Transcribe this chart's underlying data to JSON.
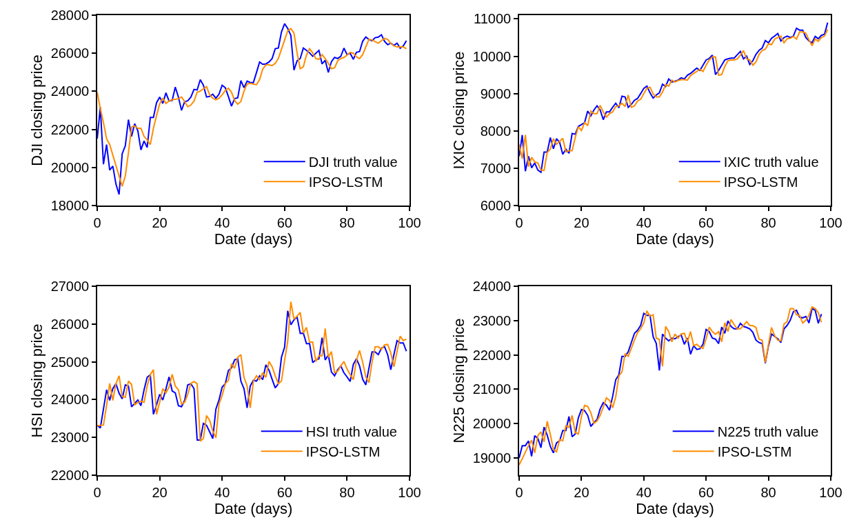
{
  "chart_data": [
    {
      "type": "line",
      "xlabel": "Date (days)",
      "ylabel": "DJI closing price",
      "xlim": [
        0,
        100
      ],
      "xticks": [
        0,
        20,
        40,
        60,
        80,
        100
      ],
      "ylim": [
        18000,
        28000
      ],
      "yticks": [
        18000,
        20000,
        22000,
        24000,
        26000,
        28000
      ],
      "legend": "bottom right",
      "x": [
        0,
        1,
        2,
        3,
        4,
        5,
        6,
        7,
        8,
        9,
        10,
        11,
        12,
        13,
        14,
        15,
        16,
        17,
        18,
        19,
        20,
        21,
        22,
        23,
        24,
        25,
        26,
        27,
        28,
        29,
        30,
        31,
        32,
        33,
        34,
        35,
        36,
        37,
        38,
        39,
        40,
        41,
        42,
        43,
        44,
        45,
        46,
        47,
        48,
        49,
        50,
        51,
        52,
        53,
        54,
        55,
        56,
        57,
        58,
        59,
        60,
        61,
        62,
        63,
        64,
        65,
        66,
        67,
        68,
        69,
        70,
        71,
        72,
        73,
        74,
        75,
        76,
        77,
        78,
        79,
        80,
        81,
        82,
        83,
        84,
        85,
        86,
        87,
        88,
        89,
        90,
        91,
        92,
        93,
        94,
        95,
        96,
        97,
        98,
        99
      ],
      "series": [
        {
          "name": "DJI truth value",
          "color": "#0000ff",
          "values": [
            21510,
            23160,
            20170,
            21200,
            19860,
            20070,
            19130,
            18580,
            20720,
            21140,
            22510,
            21630,
            22300,
            21940,
            20920,
            21390,
            21050,
            22630,
            22630,
            23400,
            23700,
            23360,
            23920,
            23490,
            23520,
            24220,
            23700,
            23000,
            23460,
            23500,
            23700,
            24100,
            24070,
            24610,
            24320,
            23700,
            23730,
            23850,
            23640,
            23850,
            24320,
            24190,
            23730,
            23220,
            23610,
            23660,
            24560,
            24190,
            24540,
            24460,
            24460,
            24990,
            25540,
            25420,
            25440,
            25540,
            25720,
            26240,
            26270,
            27120,
            27550,
            27300,
            26940,
            25110,
            25600,
            25720,
            26270,
            26150,
            26020,
            25840,
            26000,
            26150,
            25440,
            25630,
            24990,
            25560,
            25780,
            25720,
            25840,
            26270,
            25930,
            26000,
            25680,
            26050,
            26090,
            26630,
            26850,
            26730,
            26660,
            26820,
            26850,
            26970,
            26630,
            26450,
            26530,
            26410,
            26530,
            26270,
            26390,
            26660
          ]
        },
        {
          "name": "IPSO-LSTM",
          "color": "#ff8c00",
          "values": [
            23950,
            23100,
            22360,
            21510,
            21200,
            20650,
            20100,
            19560,
            19010,
            19560,
            20780,
            22120,
            22180,
            22060,
            22060,
            21630,
            21450,
            21200,
            22060,
            22730,
            23340,
            23640,
            23360,
            23490,
            23560,
            23580,
            23610,
            23700,
            23460,
            23190,
            23280,
            23490,
            23950,
            24010,
            24130,
            24250,
            23820,
            23640,
            23560,
            23640,
            23820,
            24040,
            24160,
            23950,
            23520,
            23320,
            23460,
            24010,
            24380,
            24420,
            24380,
            24350,
            24620,
            25170,
            25390,
            25390,
            25350,
            25470,
            25720,
            26210,
            26690,
            27180,
            27300,
            27060,
            26020,
            25190,
            25290,
            25900,
            26240,
            26020,
            25720,
            25680,
            25930,
            25720,
            25470,
            25190,
            25230,
            25600,
            25720,
            25780,
            25900,
            26050,
            26000,
            25810,
            25720,
            25930,
            26330,
            26730,
            26700,
            26610,
            26530,
            26660,
            26780,
            26730,
            26510,
            26390,
            26330,
            26330,
            26330,
            26240
          ]
        }
      ]
    },
    {
      "type": "line",
      "xlabel": "Date (days)",
      "ylabel": "IXIC closing price",
      "xlim": [
        0,
        100
      ],
      "xticks": [
        0,
        20,
        40,
        60,
        80,
        100
      ],
      "ylim": [
        6000,
        11100
      ],
      "yticks": [
        6000,
        7000,
        8000,
        9000,
        10000,
        11000
      ],
      "legend": "bottom right",
      "x": [
        0,
        1,
        2,
        3,
        4,
        5,
        6,
        7,
        8,
        9,
        10,
        11,
        12,
        13,
        14,
        15,
        16,
        17,
        18,
        19,
        20,
        21,
        22,
        23,
        24,
        25,
        26,
        27,
        28,
        29,
        30,
        31,
        32,
        33,
        34,
        35,
        36,
        37,
        38,
        39,
        40,
        41,
        42,
        43,
        44,
        45,
        46,
        47,
        48,
        49,
        50,
        51,
        52,
        53,
        54,
        55,
        56,
        57,
        58,
        59,
        60,
        61,
        62,
        63,
        64,
        65,
        66,
        67,
        68,
        69,
        70,
        71,
        72,
        73,
        74,
        75,
        76,
        77,
        78,
        79,
        80,
        81,
        82,
        83,
        84,
        85,
        86,
        87,
        88,
        89,
        90,
        91,
        92,
        93,
        94,
        95,
        96,
        97,
        98,
        99
      ],
      "series": [
        {
          "name": "IXIC truth value",
          "color": "#0000ff",
          "values": [
            7320,
            7890,
            6920,
            7320,
            7010,
            7140,
            6950,
            6890,
            7430,
            7430,
            7820,
            7520,
            7790,
            7690,
            7370,
            7510,
            7400,
            7930,
            7910,
            8120,
            8170,
            8220,
            8530,
            8400,
            8560,
            8670,
            8560,
            8300,
            8510,
            8510,
            8630,
            8740,
            8620,
            8930,
            8910,
            8630,
            8710,
            8820,
            8870,
            9000,
            9140,
            9200,
            9020,
            8880,
            8960,
            9020,
            9250,
            9190,
            9390,
            9310,
            9330,
            9360,
            9420,
            9390,
            9490,
            9540,
            9610,
            9680,
            9620,
            9760,
            9900,
            9940,
            10030,
            9510,
            9620,
            9760,
            9900,
            9930,
            9950,
            9950,
            10040,
            10130,
            9930,
            10000,
            9780,
            9880,
            10050,
            10160,
            10220,
            10420,
            10360,
            10480,
            10540,
            10610,
            10410,
            10500,
            10540,
            10500,
            10540,
            10750,
            10700,
            10700,
            10500,
            10410,
            10360,
            10530,
            10470,
            10560,
            10590,
            10900
          ]
        },
        {
          "name": "IPSO-LSTM",
          "color": "#ff8c00",
          "values": [
            7630,
            7260,
            7890,
            7040,
            7290,
            7170,
            7140,
            6950,
            6940,
            7420,
            7510,
            7790,
            7640,
            7720,
            7800,
            7440,
            7470,
            7470,
            7820,
            8110,
            8010,
            8220,
            8140,
            8530,
            8460,
            8460,
            8680,
            8510,
            8370,
            8460,
            8510,
            8650,
            8670,
            8740,
            8650,
            8960,
            8630,
            8670,
            8800,
            8850,
            9000,
            9140,
            9170,
            8990,
            8910,
            8910,
            9040,
            9240,
            9200,
            9360,
            9310,
            9350,
            9370,
            9370,
            9360,
            9480,
            9540,
            9590,
            9650,
            9590,
            9760,
            9900,
            9980,
            9980,
            9490,
            9510,
            9730,
            9880,
            9900,
            9900,
            9930,
            10030,
            10150,
            9930,
            9900,
            9760,
            9850,
            10050,
            10150,
            10190,
            10330,
            10310,
            10460,
            10500,
            10540,
            10360,
            10470,
            10480,
            10530,
            10460,
            10650,
            10650,
            10620,
            10440,
            10280,
            10460,
            10400,
            10500,
            10540,
            10720
          ]
        }
      ]
    },
    {
      "type": "line",
      "xlabel": "Date (days)",
      "ylabel": "HSI closing price",
      "xlim": [
        0,
        100
      ],
      "xticks": [
        0,
        20,
        40,
        60,
        80,
        100
      ],
      "ylim": [
        22000,
        27000
      ],
      "yticks": [
        22000,
        23000,
        24000,
        25000,
        26000,
        27000
      ],
      "legend": "bottom right",
      "x": [
        0,
        1,
        2,
        3,
        4,
        5,
        6,
        7,
        8,
        9,
        10,
        11,
        12,
        13,
        14,
        15,
        16,
        17,
        18,
        19,
        20,
        21,
        22,
        23,
        24,
        25,
        26,
        27,
        28,
        29,
        30,
        31,
        32,
        33,
        34,
        35,
        36,
        37,
        38,
        39,
        40,
        41,
        42,
        43,
        44,
        45,
        46,
        47,
        48,
        49,
        50,
        51,
        52,
        53,
        54,
        55,
        56,
        57,
        58,
        59,
        60,
        61,
        62,
        63,
        64,
        65,
        66,
        67,
        68,
        69,
        70,
        71,
        72,
        73,
        74,
        75,
        76,
        77,
        78,
        79,
        80,
        81,
        82,
        83,
        84,
        85,
        86,
        87,
        88,
        89,
        90,
        91,
        92,
        93,
        94,
        95,
        96,
        97,
        98,
        99
      ],
      "series": [
        {
          "name": "HSI truth value",
          "color": "#0000ff",
          "values": [
            23320,
            23250,
            23750,
            24260,
            23980,
            24290,
            24420,
            24170,
            24020,
            24390,
            24360,
            23810,
            23900,
            23990,
            23840,
            24260,
            24590,
            24660,
            23610,
            23860,
            24140,
            23990,
            24280,
            24600,
            24230,
            24180,
            23840,
            23810,
            23980,
            24390,
            24420,
            24290,
            22930,
            22930,
            23370,
            23320,
            23150,
            22970,
            23750,
            23990,
            24330,
            24420,
            24770,
            24840,
            25050,
            25080,
            24490,
            24290,
            23780,
            24360,
            24510,
            24490,
            24630,
            24530,
            24920,
            24780,
            24540,
            24310,
            24420,
            25120,
            25390,
            26350,
            25980,
            26110,
            26190,
            25750,
            25760,
            25480,
            25480,
            24980,
            25050,
            25080,
            25640,
            25050,
            25180,
            24730,
            24630,
            24790,
            24890,
            24710,
            24600,
            24480,
            24930,
            25080,
            24890,
            24540,
            24390,
            24830,
            25260,
            25260,
            25190,
            25360,
            25400,
            25190,
            24790,
            25190,
            25560,
            25500,
            25500,
            25280
          ]
        },
        {
          "name": "IPSO-LSTM",
          "color": "#ff8c00",
          "values": [
            23310,
            23320,
            23330,
            23840,
            24430,
            23980,
            24420,
            24630,
            24080,
            24060,
            24490,
            24400,
            23860,
            23920,
            23960,
            23930,
            24360,
            24660,
            24790,
            23610,
            23930,
            24290,
            24180,
            24330,
            24670,
            24360,
            24260,
            23880,
            23930,
            24140,
            24430,
            24480,
            24420,
            22900,
            22970,
            23580,
            23450,
            23170,
            22990,
            23880,
            24110,
            24420,
            24510,
            24950,
            24830,
            25120,
            25190,
            24590,
            24360,
            23780,
            24480,
            24630,
            24530,
            24710,
            24590,
            25010,
            24870,
            24630,
            24420,
            24490,
            25040,
            25540,
            26590,
            26130,
            26210,
            26310,
            25760,
            25910,
            25520,
            25520,
            25010,
            25160,
            25160,
            25880,
            25120,
            25270,
            24710,
            24750,
            24890,
            25010,
            24810,
            24660,
            24530,
            25040,
            25300,
            24990,
            24600,
            24450,
            24990,
            25400,
            25400,
            25330,
            25450,
            25460,
            25240,
            24870,
            25270,
            25680,
            25560,
            25600
          ]
        }
      ]
    },
    {
      "type": "line",
      "xlabel": "Date (days)",
      "ylabel": "N225 closing price",
      "xlim": [
        0,
        100
      ],
      "xticks": [
        0,
        20,
        40,
        60,
        80,
        100
      ],
      "ylim": [
        18500,
        24000
      ],
      "yticks": [
        19000,
        20000,
        21000,
        22000,
        23000,
        24000
      ],
      "legend": "bottom right",
      "x": [
        0,
        1,
        2,
        3,
        4,
        5,
        6,
        7,
        8,
        9,
        10,
        11,
        12,
        13,
        14,
        15,
        16,
        17,
        18,
        19,
        20,
        21,
        22,
        23,
        24,
        25,
        26,
        27,
        28,
        29,
        30,
        31,
        32,
        33,
        34,
        35,
        36,
        37,
        38,
        39,
        40,
        41,
        42,
        43,
        44,
        45,
        46,
        47,
        48,
        49,
        50,
        51,
        52,
        53,
        54,
        55,
        56,
        57,
        58,
        59,
        60,
        61,
        62,
        63,
        64,
        65,
        66,
        67,
        68,
        69,
        70,
        71,
        72,
        73,
        74,
        75,
        76,
        77,
        78,
        79,
        80,
        81,
        82,
        83,
        84,
        85,
        86,
        87,
        88,
        89,
        90,
        91,
        92,
        93,
        94,
        95,
        96,
        97
      ],
      "series": [
        {
          "name": "N225 truth value",
          "color": "#0000ff",
          "values": [
            19000,
            19360,
            19360,
            19500,
            19050,
            19650,
            19570,
            19300,
            19900,
            19670,
            19340,
            19150,
            19440,
            19500,
            19800,
            19800,
            20210,
            19620,
            19700,
            20170,
            20410,
            20380,
            20240,
            19920,
            20030,
            20120,
            20430,
            20610,
            20540,
            20390,
            20790,
            21280,
            21420,
            21960,
            21960,
            22090,
            22360,
            22630,
            22720,
            22860,
            23210,
            23150,
            23150,
            22530,
            22340,
            21550,
            22610,
            22490,
            22410,
            22490,
            22470,
            22530,
            22580,
            22310,
            22490,
            22020,
            22270,
            22160,
            22180,
            22310,
            22740,
            22680,
            22490,
            22460,
            22330,
            22810,
            22630,
            22990,
            22830,
            22760,
            22760,
            22920,
            22830,
            22800,
            22760,
            22660,
            22430,
            22360,
            22330,
            21760,
            22260,
            22610,
            22540,
            22470,
            22360,
            22760,
            22860,
            23010,
            23260,
            23300,
            23100,
            23080,
            23120,
            22930,
            23350,
            23300,
            22920,
            23190
          ]
        },
        {
          "name": "IPSO-LSTM",
          "color": "#ff8c00",
          "values": [
            18800,
            18980,
            19170,
            19360,
            19520,
            19150,
            19650,
            19760,
            19470,
            20070,
            19690,
            19250,
            19180,
            19540,
            19500,
            19940,
            19890,
            20240,
            19740,
            19700,
            20210,
            20530,
            20500,
            20320,
            20010,
            20080,
            20240,
            20480,
            20750,
            20680,
            20460,
            20780,
            21390,
            21510,
            22040,
            21960,
            22190,
            22430,
            22650,
            22760,
            22930,
            23280,
            23130,
            23170,
            22490,
            22450,
            21670,
            22830,
            22680,
            22380,
            22610,
            22490,
            22610,
            22630,
            22380,
            22680,
            22270,
            22310,
            22230,
            22190,
            22470,
            22810,
            22680,
            22600,
            22680,
            22380,
            22940,
            22680,
            23030,
            22880,
            22760,
            22760,
            22860,
            22970,
            22860,
            22850,
            22800,
            22460,
            22430,
            21780,
            22300,
            22800,
            22560,
            22430,
            22410,
            22900,
            22970,
            23350,
            23350,
            23170,
            23150,
            22930,
            23010,
            23150,
            23400,
            23350,
            23230,
            22950
          ]
        }
      ]
    }
  ]
}
